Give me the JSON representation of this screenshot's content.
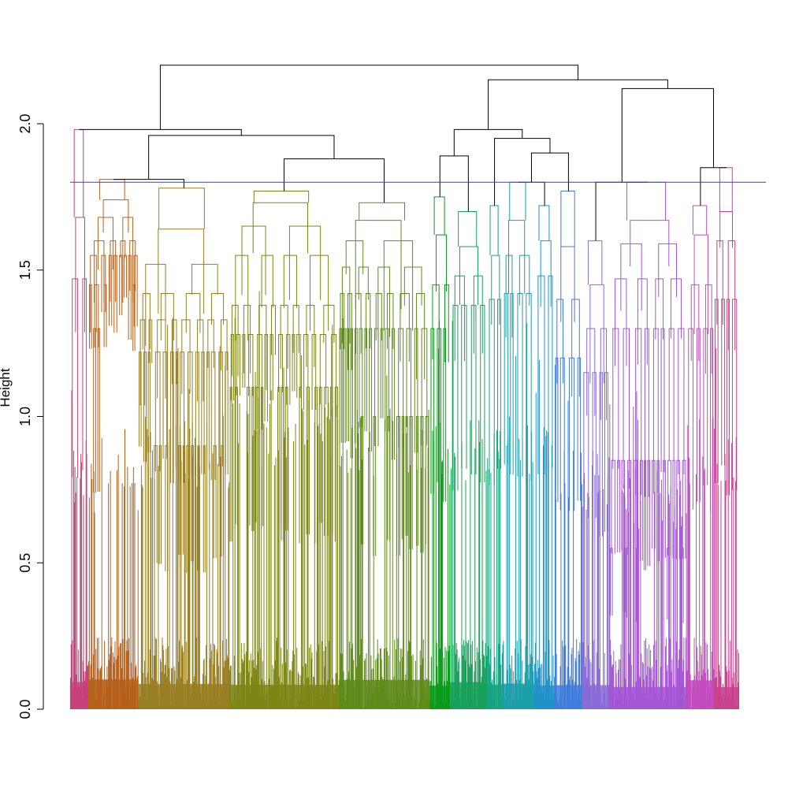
{
  "chart_data": {
    "type": "dendrogram",
    "title": "",
    "xlabel": "",
    "ylabel": "Height",
    "ylim": [
      0,
      2.0
    ],
    "y_ticks": [
      0.0,
      0.5,
      1.0,
      1.5,
      2.0
    ],
    "y_tick_labels": [
      "0.0",
      "0.5",
      "1.0",
      "1.5",
      "2.0"
    ],
    "cut_height": 1.8,
    "cut_line_color": "#3b3bd6",
    "upper_link_color": "#000000",
    "clusters": [
      {
        "id": 1,
        "color": "#c7407a",
        "leaves": 40,
        "internal": [
          1.98,
          1.68,
          1.47
        ],
        "leaf_height": 1.25
      },
      {
        "id": 2,
        "color": "#b6601a",
        "leaves": 110,
        "internal": [
          1.81,
          1.74,
          1.68,
          1.6,
          1.55,
          1.45,
          1.3
        ],
        "leaf_height": 1.2
      },
      {
        "id": 3,
        "color": "#987e22",
        "leaves": 200,
        "internal": [
          1.78,
          1.64,
          1.52,
          1.42,
          1.33,
          1.22,
          0.9
        ],
        "leaf_height": 1.35
      },
      {
        "id": 4,
        "color": "#7c8515",
        "leaves": 240,
        "internal": [
          1.77,
          1.73,
          1.65,
          1.55,
          1.38,
          1.28,
          1.1
        ],
        "leaf_height": 1.45
      },
      {
        "id": 5,
        "color": "#5e8b19",
        "leaves": 200,
        "internal": [
          1.73,
          1.67,
          1.6,
          1.51,
          1.42,
          1.3,
          1.0
        ],
        "leaf_height": 1.4
      },
      {
        "id": 6,
        "color": "#0a9a1a",
        "leaves": 45,
        "internal": [
          1.75,
          1.62,
          1.45,
          1.3
        ],
        "leaf_height": 1.35
      },
      {
        "id": 7,
        "color": "#17a05a",
        "leaves": 80,
        "internal": [
          1.7,
          1.58,
          1.48,
          1.38
        ],
        "leaf_height": 1.35
      },
      {
        "id": 8,
        "color": "#16a37f",
        "leaves": 35,
        "internal": [
          1.72,
          1.55,
          1.4
        ],
        "leaf_height": 1.3
      },
      {
        "id": 9,
        "color": "#1a9eaa",
        "leaves": 70,
        "internal": [
          1.8,
          1.67,
          1.55,
          1.42
        ],
        "leaf_height": 1.35
      },
      {
        "id": 10,
        "color": "#2092c9",
        "leaves": 45,
        "internal": [
          1.72,
          1.6,
          1.48
        ],
        "leaf_height": 1.3
      },
      {
        "id": 11,
        "color": "#3f7ddc",
        "leaves": 60,
        "internal": [
          1.77,
          1.58,
          1.4,
          1.2
        ],
        "leaf_height": 1.2
      },
      {
        "id": 12,
        "color": "#8a6ad7",
        "leaves": 60,
        "internal": [
          1.6,
          1.45,
          1.3,
          1.15
        ],
        "leaf_height": 1.2
      },
      {
        "id": 13,
        "color": "#a455d3",
        "leaves": 170,
        "internal": [
          1.8,
          1.67,
          1.59,
          1.47,
          1.3,
          0.85,
          0.55
        ],
        "leaf_height": 1.1
      },
      {
        "id": 14,
        "color": "#c24bbf",
        "leaves": 60,
        "internal": [
          1.72,
          1.62,
          1.45,
          1.3
        ],
        "leaf_height": 1.35
      },
      {
        "id": 15,
        "color": "#c9408e",
        "leaves": 55,
        "internal": [
          1.85,
          1.7,
          1.6,
          1.4
        ],
        "leaf_height": 1.3
      }
    ],
    "upper_merges": [
      {
        "left": "c2",
        "right": "c3",
        "height": 1.81,
        "name": "m-2-3"
      },
      {
        "left": "c4",
        "right": "c5",
        "height": 1.88,
        "name": "m-4-5"
      },
      {
        "left": "m-2-3",
        "right": "m-4-5",
        "height": 1.96,
        "name": "m-2-5"
      },
      {
        "left": "c1",
        "right": "m-2-5",
        "height": 1.98,
        "name": "m-1-5"
      },
      {
        "left": "c6",
        "right": "c7",
        "height": 1.89,
        "name": "m-6-7"
      },
      {
        "left": "c9",
        "right": "c10",
        "height": 1.8,
        "name": "m-9-10"
      },
      {
        "left": "m-9-10",
        "right": "c11",
        "height": 1.9,
        "name": "m-9-11"
      },
      {
        "left": "c8",
        "right": "m-9-11",
        "height": 1.95,
        "name": "m-8-11"
      },
      {
        "left": "m-6-7",
        "right": "m-8-11",
        "height": 1.98,
        "name": "m-6-11"
      },
      {
        "left": "c12",
        "right": "c13",
        "height": 1.8,
        "name": "m-12-13"
      },
      {
        "left": "c14",
        "right": "c15",
        "height": 1.85,
        "name": "m-14-15"
      },
      {
        "left": "m-12-13",
        "right": "m-14-15",
        "height": 2.12,
        "name": "m-12-15"
      },
      {
        "left": "m-6-11",
        "right": "m-12-15",
        "height": 2.15,
        "name": "m-6-15"
      },
      {
        "left": "m-1-5",
        "right": "m-6-15",
        "height": 2.2,
        "name": "root"
      }
    ]
  }
}
